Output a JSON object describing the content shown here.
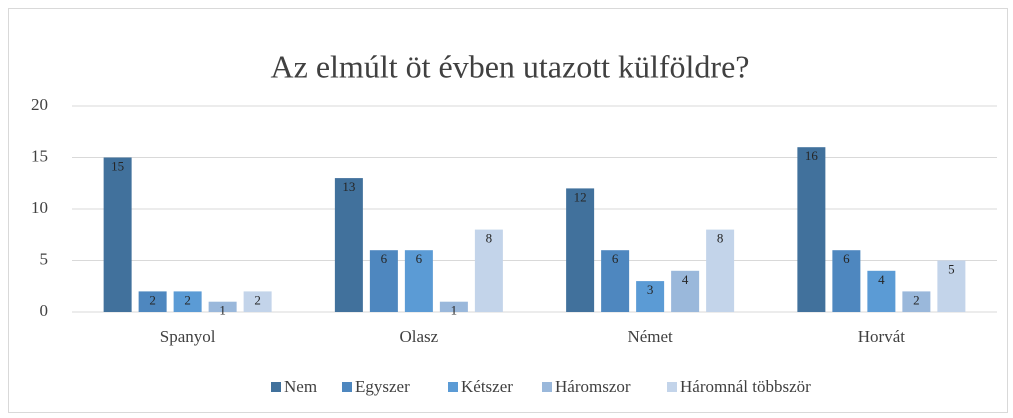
{
  "chart_data": {
    "type": "bar",
    "title": "Az elmúlt öt évben utazott külföldre?",
    "categories": [
      "Spanyol",
      "Olasz",
      "Német",
      "Horvát"
    ],
    "series": [
      {
        "name": "Nem",
        "color": "#41719c",
        "values": [
          15,
          13,
          12,
          16
        ]
      },
      {
        "name": "Egyszer",
        "color": "#4e87bf",
        "values": [
          2,
          6,
          6,
          6
        ]
      },
      {
        "name": "Kétszer",
        "color": "#5b9bd5",
        "values": [
          2,
          6,
          3,
          4
        ]
      },
      {
        "name": "Háromszor",
        "color": "#9ab8db",
        "values": [
          1,
          1,
          4,
          2
        ]
      },
      {
        "name": "Háromnál többször",
        "color": "#c3d4ea",
        "values": [
          2,
          8,
          8,
          5
        ]
      }
    ],
    "ylim": [
      0,
      20
    ],
    "yticks": [
      0,
      5,
      10,
      15,
      20
    ],
    "grid": true,
    "legend": "bottom"
  }
}
